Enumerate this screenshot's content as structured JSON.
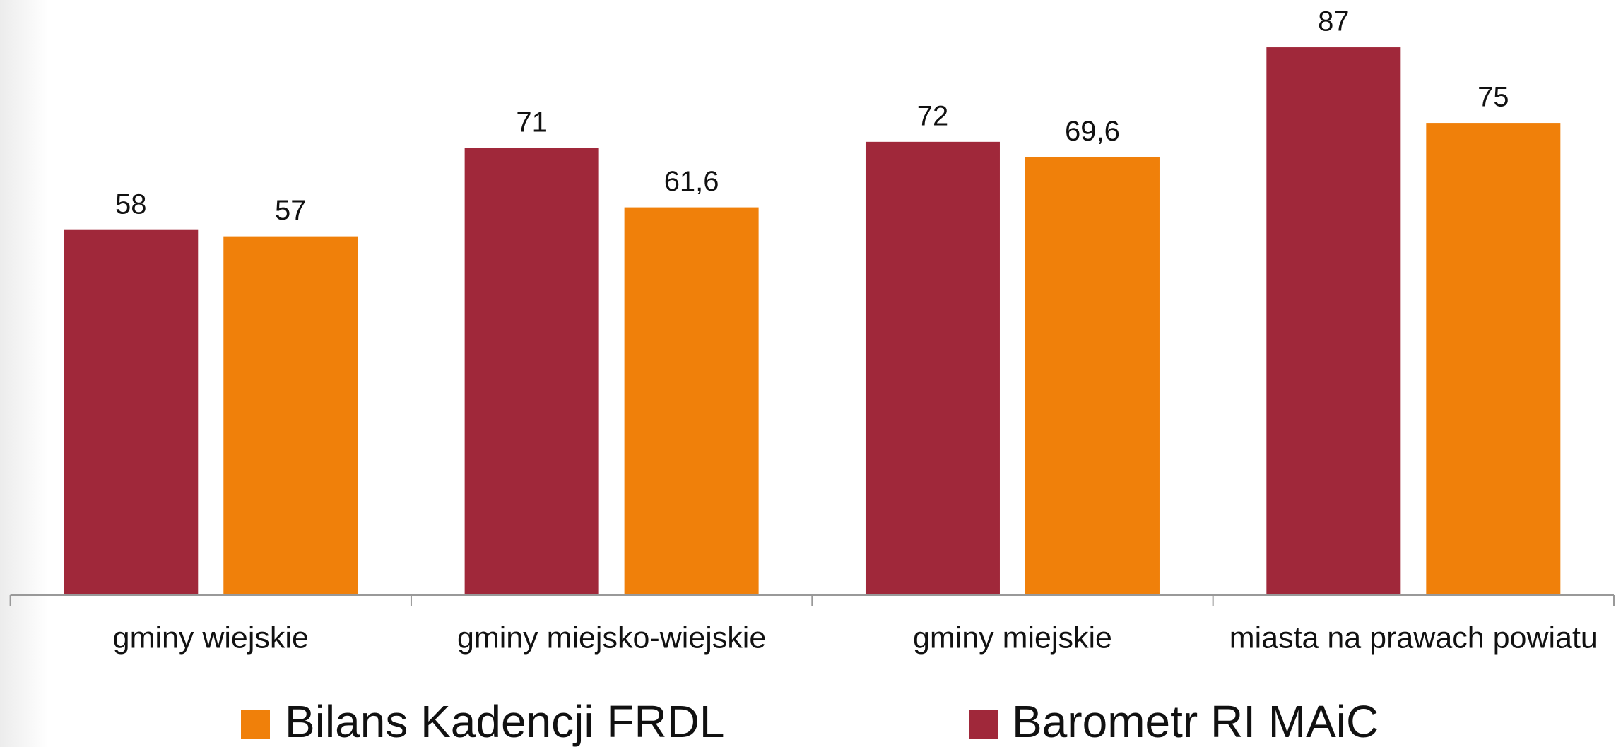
{
  "chart_data": {
    "type": "bar",
    "categories": [
      "gminy wiejskie",
      "gminy miejsko-wiejskie",
      "gminy miejskie",
      "miasta na prawach powiatu"
    ],
    "series": [
      {
        "name": "Barometr RI MAiC",
        "color": "#a0283a",
        "values": [
          58,
          71,
          72,
          87
        ]
      },
      {
        "name": "Bilans Kadencji FRDL",
        "color": "#f0800a",
        "values": [
          57,
          61.6,
          69.6,
          75
        ],
        "value_labels": [
          "57",
          "61,6",
          "69,6",
          "75"
        ]
      }
    ],
    "ylim": [
      0,
      90
    ]
  }
}
